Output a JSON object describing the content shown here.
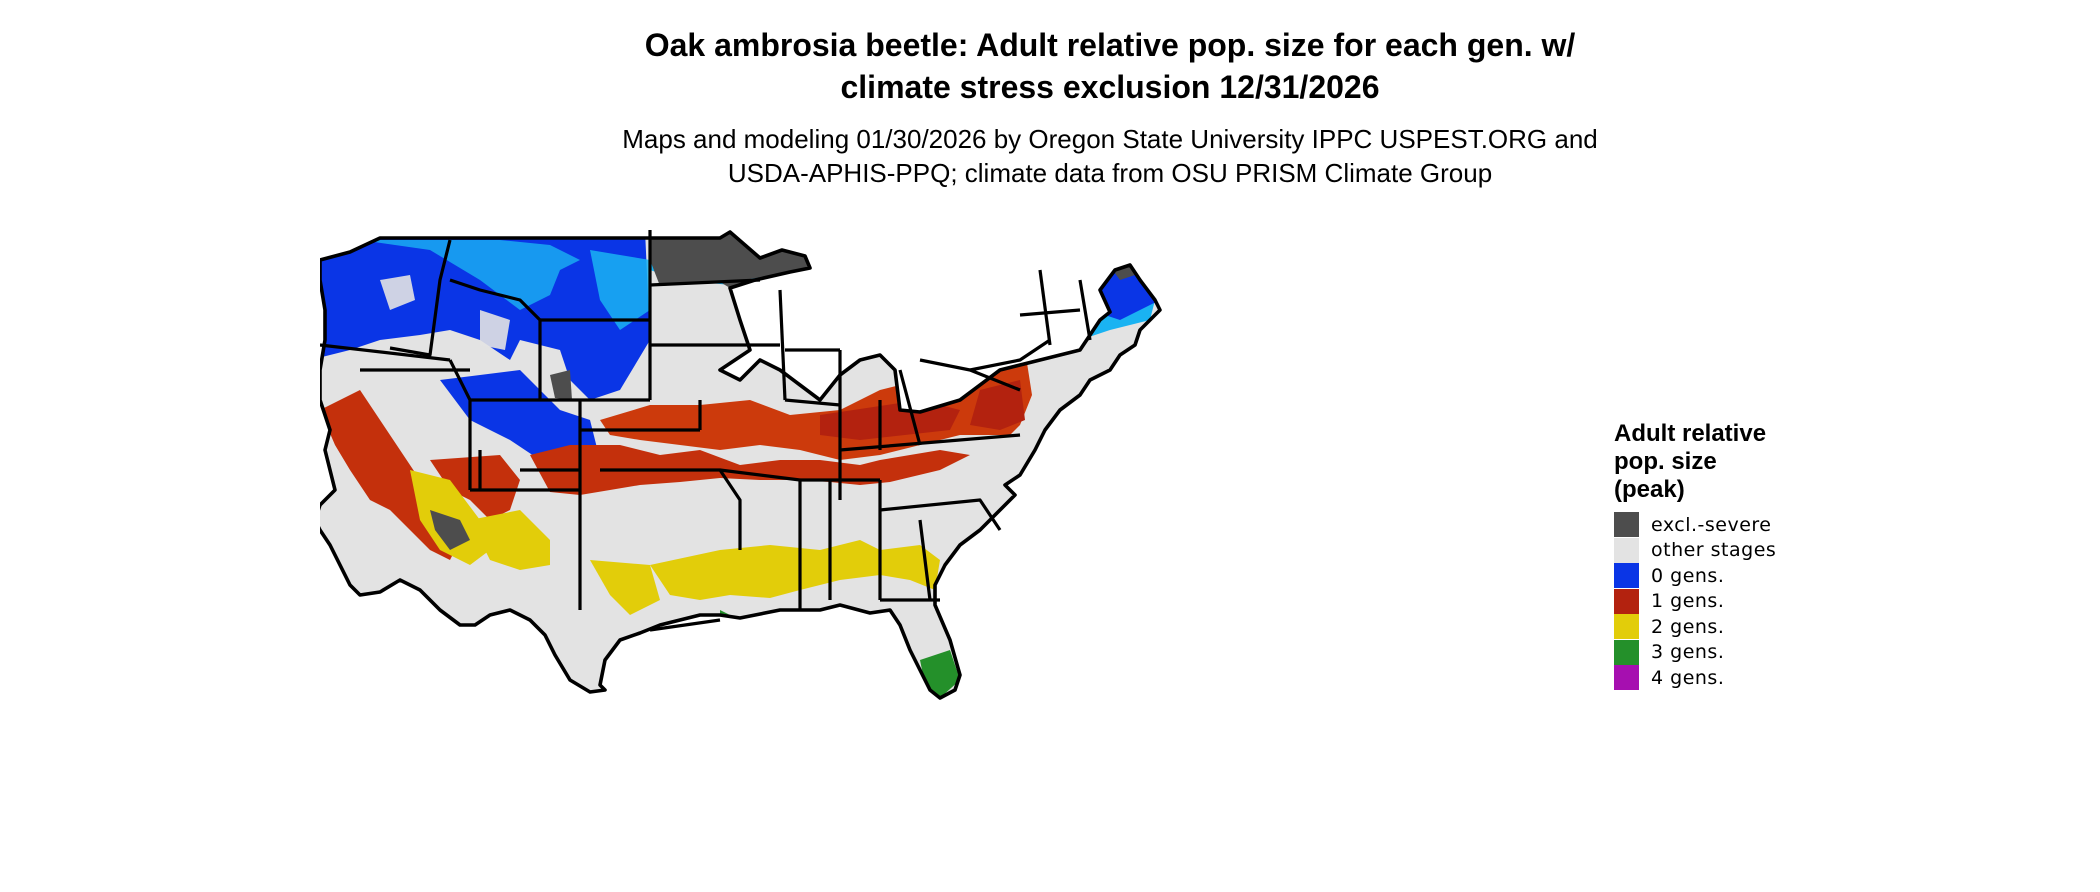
{
  "title": {
    "line1": "Oak ambrosia beetle: Adult relative pop. size for each gen. w/",
    "line2": "climate stress exclusion 12/31/2026"
  },
  "subtitle": {
    "line1": "Maps and modeling 01/30/2026 by Oregon State University IPPC USPEST.ORG and",
    "line2": "USDA-APHIS-PPQ; climate data from OSU PRISM Climate Group"
  },
  "legend": {
    "title_lines": [
      "Adult relative",
      "pop. size",
      "(peak)"
    ],
    "items": [
      {
        "label": "excl.-severe",
        "color": "#4d4d4d"
      },
      {
        "label": "other stages",
        "color": "#e3e3e3"
      },
      {
        "label": "0 gens.",
        "color": "#0a35e6"
      },
      {
        "label": "1 gens.",
        "color": "#b3220f"
      },
      {
        "label": "2 gens.",
        "color": "#e2cd0a"
      },
      {
        "label": "3 gens.",
        "color": "#24902a"
      },
      {
        "label": "4 gens.",
        "color": "#a60fb0"
      }
    ]
  },
  "map": {
    "region": "conterminous United States",
    "colors": {
      "background": "#e3e3e3",
      "border": "#000000",
      "light_blue": "#1ab3f2"
    }
  }
}
